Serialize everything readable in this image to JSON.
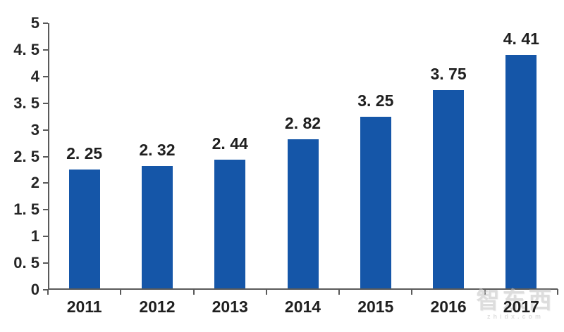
{
  "chart_data": {
    "type": "bar",
    "title": "",
    "xlabel": "",
    "ylabel": "",
    "categories": [
      "2011",
      "2012",
      "2013",
      "2014",
      "2015",
      "2016",
      "2017"
    ],
    "values": [
      2.25,
      2.32,
      2.44,
      2.82,
      3.25,
      3.75,
      4.41
    ],
    "value_labels": [
      "2. 25",
      "2. 32",
      "2. 44",
      "2. 82",
      "3. 25",
      "3. 75",
      "4. 41"
    ],
    "ylim": [
      0,
      5
    ],
    "y_tick_step": 0.5,
    "y_tick_labels": [
      "0",
      "0. 5",
      "1",
      "1. 5",
      "2",
      "2. 5",
      "3",
      "3. 5",
      "4",
      "4. 5",
      "5"
    ],
    "grid": false,
    "legend": null,
    "bar_color": "#1556a8",
    "axis_color": "#5a5a5a",
    "label_color": "#1f1f1f"
  },
  "watermark": {
    "logo_text": "智东西",
    "site_text": "zhidx.com"
  }
}
